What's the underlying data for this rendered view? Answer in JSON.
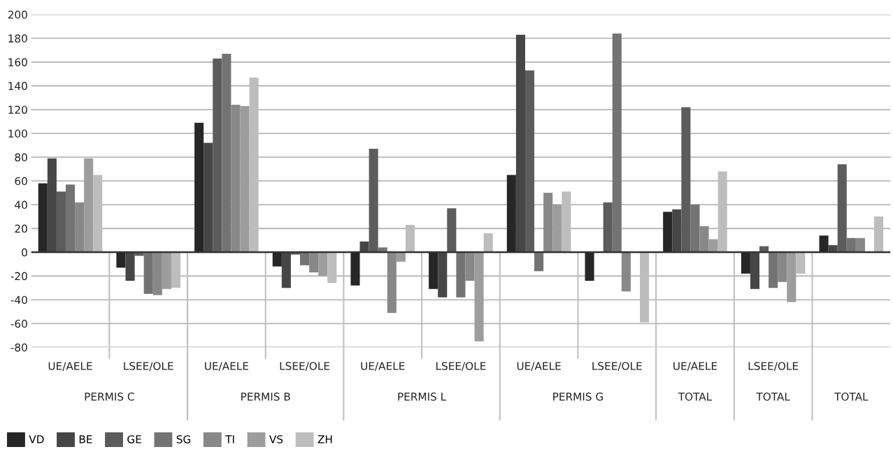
{
  "chart_data": {
    "type": "bar",
    "categories": [
      "UE/AELE",
      "LSEE/OLE",
      "UE/AELE",
      "LSEE/OLE",
      "UE/AELE",
      "LSEE/OLE",
      "UE/AELE",
      "LSEE/OLE",
      "UE/AELE",
      "LSEE/OLE",
      null
    ],
    "series": [
      {
        "name": "VD",
        "color": "#262626",
        "values": [
          58,
          -13,
          109,
          -12,
          -28,
          -31,
          65,
          -24,
          34,
          -18,
          14
        ]
      },
      {
        "name": "BE",
        "color": "#464646",
        "values": [
          79,
          -24,
          92,
          -30,
          9,
          -38,
          183,
          0,
          36,
          -31,
          6
        ]
      },
      {
        "name": "GE",
        "color": "#5c5c5c",
        "values": [
          51,
          -3,
          163,
          -2,
          87,
          37,
          153,
          42,
          122,
          5,
          74
        ]
      },
      {
        "name": "SG",
        "color": "#737373",
        "values": [
          57,
          -35,
          167,
          -11,
          4,
          -38,
          -16,
          184,
          40,
          -30,
          12
        ]
      },
      {
        "name": "TI",
        "color": "#888888",
        "values": [
          42,
          -36,
          124,
          -17,
          -51,
          -24,
          50,
          -33,
          22,
          -25,
          12
        ]
      },
      {
        "name": "VS",
        "color": "#9d9d9d",
        "values": [
          79,
          -31,
          123,
          -20,
          -8,
          -75,
          40,
          0,
          11,
          -42,
          0
        ]
      },
      {
        "name": "ZH",
        "color": "#bdbdbd",
        "values": [
          65,
          -30,
          147,
          -26,
          23,
          16,
          51,
          -59,
          68,
          -18,
          30
        ]
      }
    ],
    "annotations": [
      "PERMIS C",
      "PERMIS B",
      "PERMIS L",
      "PERMIS G",
      "TOTAL",
      "TOTAL",
      "TOTAL"
    ],
    "ylim": [
      -80,
      200
    ],
    "yticks": [
      -80,
      -60,
      -40,
      -20,
      0,
      20,
      40,
      60,
      80,
      100,
      120,
      140,
      160,
      180,
      200
    ],
    "grid": "y",
    "legend": "bottom left"
  }
}
